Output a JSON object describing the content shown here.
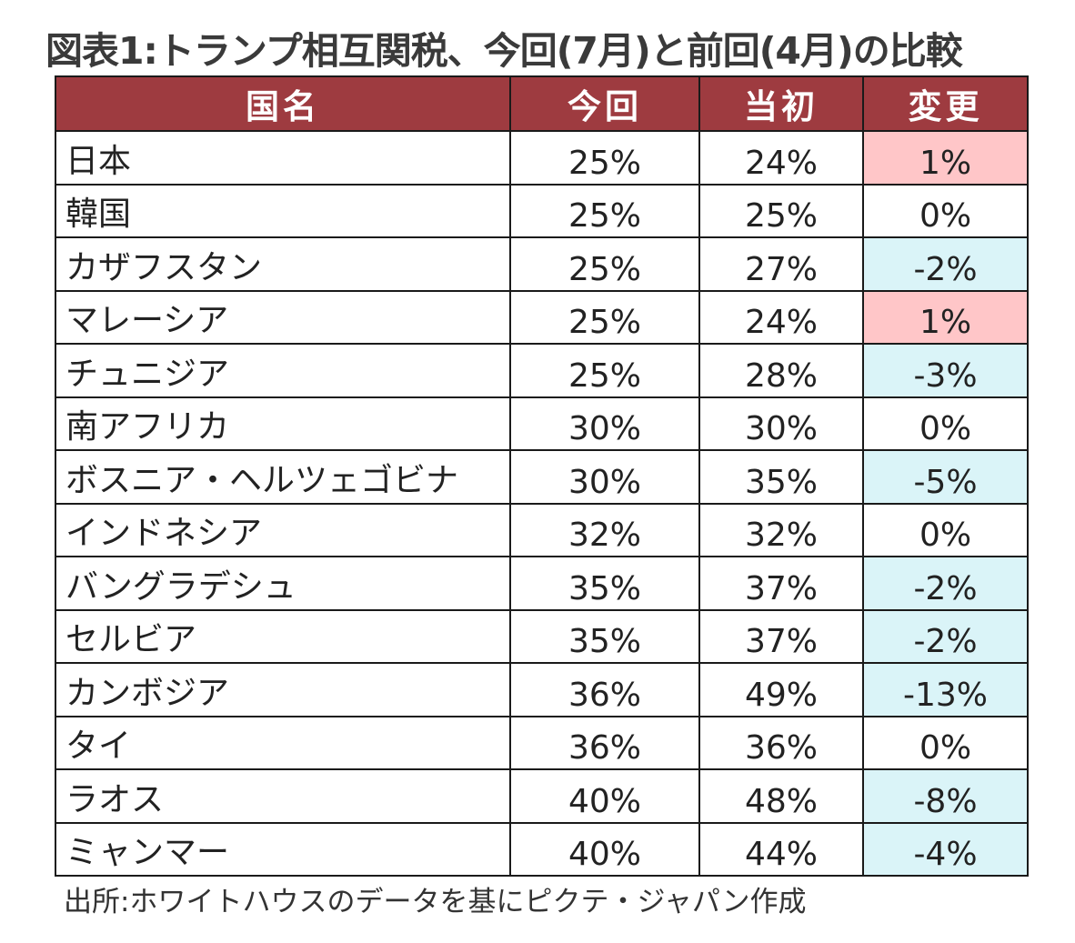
{
  "title": "図表1:トランプ相互関税、今回(7月)と前回(4月)の比較",
  "headers": [
    "国名",
    "今回",
    "当初",
    "変更"
  ],
  "colors": {
    "header_bg": "#9e3b40",
    "increase_bg": "#ffc6c8",
    "decrease_bg": "#daf4f8"
  },
  "rows": [
    {
      "country": "日本",
      "current": "25%",
      "initial": "24%",
      "change": "1%",
      "dir": "pos"
    },
    {
      "country": "韓国",
      "current": "25%",
      "initial": "25%",
      "change": "0%",
      "dir": "zero"
    },
    {
      "country": "カザフスタン",
      "current": "25%",
      "initial": "27%",
      "change": "-2%",
      "dir": "neg"
    },
    {
      "country": "マレーシア",
      "current": "25%",
      "initial": "24%",
      "change": "1%",
      "dir": "pos"
    },
    {
      "country": "チュニジア",
      "current": "25%",
      "initial": "28%",
      "change": "-3%",
      "dir": "neg"
    },
    {
      "country": "南アフリカ",
      "current": "30%",
      "initial": "30%",
      "change": "0%",
      "dir": "zero"
    },
    {
      "country": "ボスニア・ヘルツェゴビナ",
      "current": "30%",
      "initial": "35%",
      "change": "-5%",
      "dir": "neg"
    },
    {
      "country": "インドネシア",
      "current": "32%",
      "initial": "32%",
      "change": "0%",
      "dir": "zero"
    },
    {
      "country": "バングラデシュ",
      "current": "35%",
      "initial": "37%",
      "change": "-2%",
      "dir": "neg"
    },
    {
      "country": "セルビア",
      "current": "35%",
      "initial": "37%",
      "change": "-2%",
      "dir": "neg"
    },
    {
      "country": "カンボジア",
      "current": "36%",
      "initial": "49%",
      "change": "-13%",
      "dir": "neg"
    },
    {
      "country": "タイ",
      "current": "36%",
      "initial": "36%",
      "change": "0%",
      "dir": "zero"
    },
    {
      "country": "ラオス",
      "current": "40%",
      "initial": "48%",
      "change": "-8%",
      "dir": "neg"
    },
    {
      "country": "ミャンマー",
      "current": "40%",
      "initial": "44%",
      "change": "-4%",
      "dir": "neg"
    }
  ],
  "source": "出所:ホワイトハウスのデータを基にピクテ・ジャパン作成"
}
